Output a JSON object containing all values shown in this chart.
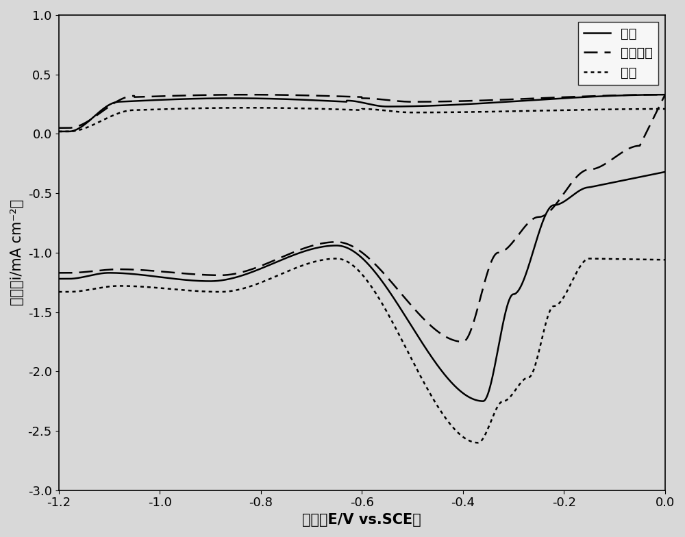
{
  "title": "",
  "xlabel": "电位（E/V vs.SCE）",
  "ylabel": "电流（i/mA cm⁻²）",
  "xlim": [
    -1.2,
    0.0
  ],
  "ylim": [
    -3.0,
    1.0
  ],
  "xticks": [
    -1.2,
    -1.0,
    -0.8,
    -0.6,
    -0.4,
    -0.2,
    0.0
  ],
  "yticks": [
    -3.0,
    -2.5,
    -2.0,
    -1.5,
    -1.0,
    -0.5,
    0.0,
    0.5,
    1.0
  ],
  "legend_labels": [
    "氧气",
    "一氧化碳",
    "甲醇"
  ],
  "background_color": "#d8d8d8",
  "legend_fontsize": 14,
  "axis_label_fontsize": 15,
  "tick_fontsize": 13,
  "line_width": 1.8
}
